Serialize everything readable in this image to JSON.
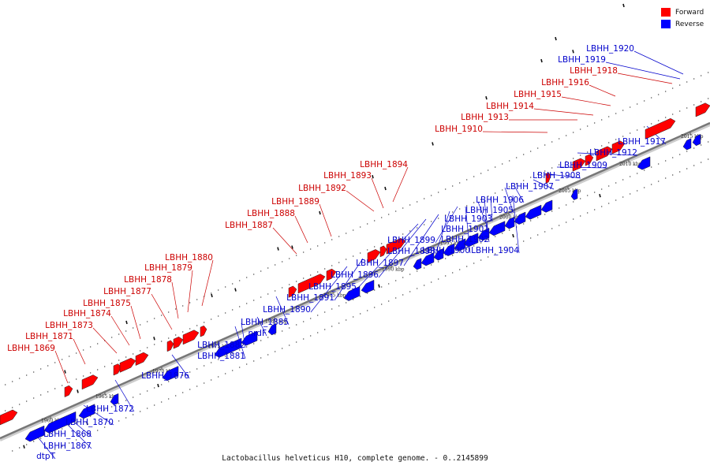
{
  "legend": {
    "forward_label": "Forward",
    "reverse_label": "Reverse",
    "forward_color": "#ff0000",
    "reverse_color": "#0000ff"
  },
  "caption": "Lactobacillus helveticus H10, complete genome. - 0..2145899",
  "ticks": [
    {
      "label": "1960 kbp"
    },
    {
      "label": "1965 kbp"
    },
    {
      "label": "1970 kbp"
    },
    {
      "label": "1975 kbp"
    },
    {
      "label": "1980 kbp"
    },
    {
      "label": "1985 kbp"
    },
    {
      "label": "1990 kbp"
    },
    {
      "label": "1995 kbp"
    },
    {
      "label": "2000 kbp"
    },
    {
      "label": "2005 kbp"
    },
    {
      "label": "2010 kbp"
    },
    {
      "label": "2015 kbp"
    }
  ],
  "forward_labels": [
    "LBHH_1869",
    "LBHH_1871",
    "LBHH_1873",
    "LBHH_1874",
    "LBHH_1875",
    "LBHH_1877",
    "LBHH_1878",
    "LBHH_1879",
    "LBHH_1880",
    "LBHH_1887",
    "LBHH_1888",
    "LBHH_1889",
    "LBHH_1892",
    "LBHH_1893",
    "LBHH_1894",
    "LBHH_1910",
    "LBHH_1913",
    "LBHH_1914",
    "LBHH_1915",
    "LBHH_1916",
    "LBHH_1918"
  ],
  "reverse_labels": [
    "dtpT",
    "LBHH_1867",
    "LBHH_1868",
    "LBHH_1870",
    "LBHH_1872",
    "LBHH_1876",
    "LBHH_1881",
    "LBHH_1882",
    "nrdF",
    "LBHH_1885",
    "LBHH_1890",
    "LBHH_1891",
    "LBHH_1895",
    "LBHH_1896",
    "LBHH_1897",
    "LBHH_1898",
    "LBHH_1899",
    "LBHH_1900",
    "LBHH_1901",
    "LBHH_1902",
    "LBHH_1903",
    "LBHH_1904",
    "LBHH_1905",
    "LBHH_1906",
    "LBHH_1907",
    "LBHH_1908",
    "LBHH_1909",
    "LBHH_1912",
    "LBHH_1917",
    "LBHH_1919",
    "LBHH_1920"
  ]
}
